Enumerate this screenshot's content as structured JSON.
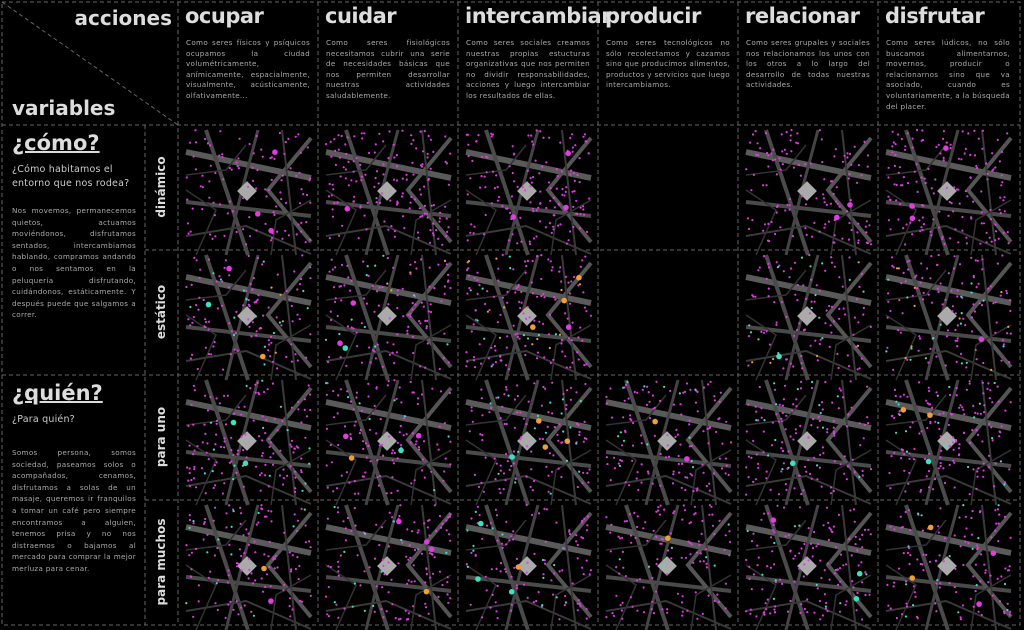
{
  "corner": {
    "top": "acciones",
    "bottom": "variables"
  },
  "columns": [
    {
      "title": "ocupar",
      "text": "Como seres físicos y psíquicos ocupamos la ciudad volumétricamente, anímicamente, espacialmente, visualmente, acústicamente, olfativamente..."
    },
    {
      "title": "cuidar",
      "text": "Como seres fisiológicos necesitamos cubrir una serie de necesidades básicas que nos permiten desarrollar nuestras actividades saludablemente."
    },
    {
      "title": "intercambiar",
      "text": "Como seres sociales creamos nuestras propias estucturas organizativas que nos permiten no dividir responsabilidades, acciones y luego intercambiar los resultados de ellas."
    },
    {
      "title": "producir",
      "text": "Como seres tecnológicos no sólo recolectamos y cazamos sino que producimos alimentos, productos y servicios que luego intercambiamos."
    },
    {
      "title": "relacionar",
      "text": "Como seres grupales y sociales nos relacionamos los unos con los otros a lo largo del desarrollo de todas nuestras actividades."
    },
    {
      "title": "disfrutar",
      "text": "Como seres lúdicos, no sólo buscamos alimentarnos, movernos, producir o relacionarnos sino que va asociado, cuando es voluntariamente, a la búsqueda del placer."
    }
  ],
  "sections": [
    {
      "title": "¿cómo?",
      "question": "¿Cómo habitamos el entorno que nos rodea?",
      "text": "Nos movemos, permanecemos quietos, actuamos moviéndonos, disfrutamos sentados, intercambiamos hablando, compramos andando o nos sentamos en la peluquería disfrutando, cuidándonos, estáticamente. Y después puede que salgamos a correr.",
      "rows": [
        "dinámico",
        "estático"
      ]
    },
    {
      "title": "¿quién?",
      "question": "¿Para quién?",
      "text": "Somos persona, somos sociedad, paseamos solos o acompañados, cenamos, disfrutamos a solas de un masaje, queremos ir franquilos a tomar un café pero siempre encontramos a alguien, tenemos prisa y no nos distraemos o bajamos al mercado para comprar la mejor merluza para cenar.",
      "rows": [
        "para uno",
        "para muchos"
      ]
    }
  ]
}
